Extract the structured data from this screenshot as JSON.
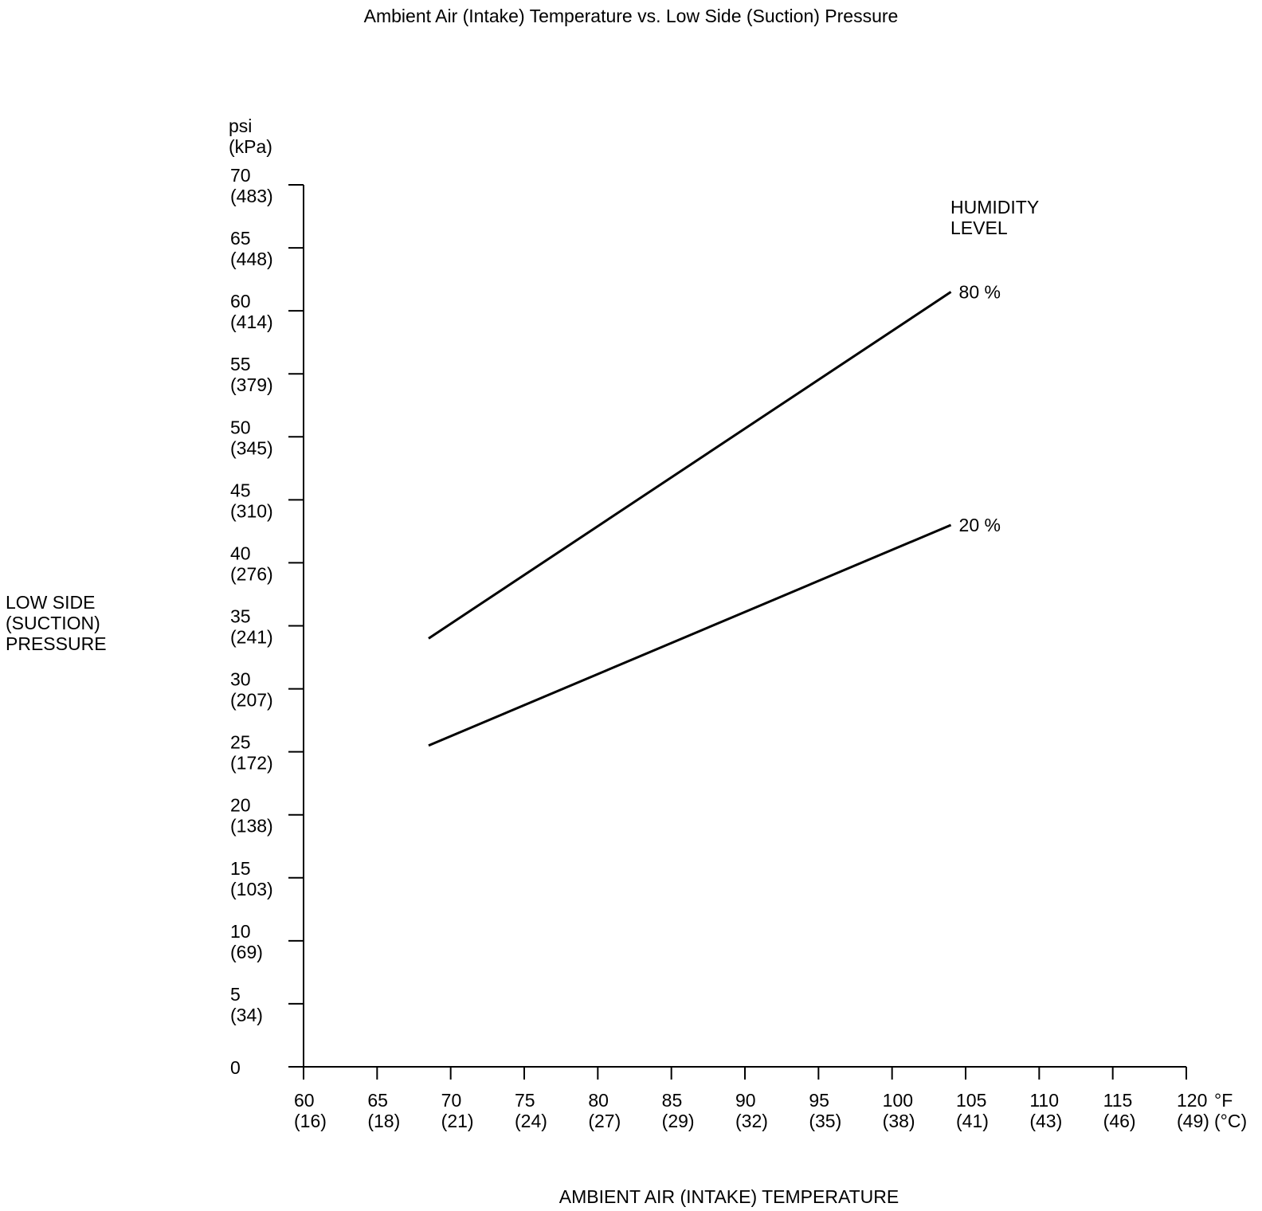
{
  "chart_data": {
    "type": "line",
    "title": "Ambient Air (Intake) Temperature vs. Low Side (Suction) Pressure",
    "xlabel": "AMBIENT AIR (INTAKE) TEMPERATURE",
    "ylabel_lines": [
      "LOW SIDE",
      "(SUCTION)",
      "PRESSURE"
    ],
    "y_unit_lines": [
      "psi",
      "(kPa)"
    ],
    "x_unit_lines": [
      "°F",
      "(°C)"
    ],
    "legend_title_lines": [
      "HUMIDITY",
      "LEVEL"
    ],
    "xlim": [
      60,
      120
    ],
    "ylim": [
      0,
      70
    ],
    "x_ticks": [
      {
        "value": 60,
        "label": "60",
        "sub": "(16)"
      },
      {
        "value": 65,
        "label": "65",
        "sub": "(18)"
      },
      {
        "value": 70,
        "label": "70",
        "sub": "(21)"
      },
      {
        "value": 75,
        "label": "75",
        "sub": "(24)"
      },
      {
        "value": 80,
        "label": "80",
        "sub": "(27)"
      },
      {
        "value": 85,
        "label": "85",
        "sub": "(29)"
      },
      {
        "value": 90,
        "label": "90",
        "sub": "(32)"
      },
      {
        "value": 95,
        "label": "95",
        "sub": "(35)"
      },
      {
        "value": 100,
        "label": "100",
        "sub": "(38)"
      },
      {
        "value": 105,
        "label": "105",
        "sub": "(41)"
      },
      {
        "value": 110,
        "label": "110",
        "sub": "(43)"
      },
      {
        "value": 115,
        "label": "115",
        "sub": "(46)"
      },
      {
        "value": 120,
        "label": "120",
        "sub": "(49)"
      }
    ],
    "y_ticks": [
      {
        "value": 0,
        "label": "0",
        "sub": ""
      },
      {
        "value": 5,
        "label": "5",
        "sub": "(34)"
      },
      {
        "value": 10,
        "label": "10",
        "sub": "(69)"
      },
      {
        "value": 15,
        "label": "15",
        "sub": "(103)"
      },
      {
        "value": 20,
        "label": "20",
        "sub": "(138)"
      },
      {
        "value": 25,
        "label": "25",
        "sub": "(172)"
      },
      {
        "value": 30,
        "label": "30",
        "sub": "(207)"
      },
      {
        "value": 35,
        "label": "35",
        "sub": "(241)"
      },
      {
        "value": 40,
        "label": "40",
        "sub": "(276)"
      },
      {
        "value": 45,
        "label": "45",
        "sub": "(310)"
      },
      {
        "value": 50,
        "label": "50",
        "sub": "(345)"
      },
      {
        "value": 55,
        "label": "55",
        "sub": "(379)"
      },
      {
        "value": 60,
        "label": "60",
        "sub": "(414)"
      },
      {
        "value": 65,
        "label": "65",
        "sub": "(448)"
      },
      {
        "value": 70,
        "label": "70",
        "sub": "(483)"
      }
    ],
    "series": [
      {
        "name": "80 %",
        "x": [
          68.5,
          104
        ],
        "y": [
          34,
          61.5
        ]
      },
      {
        "name": "20 %",
        "x": [
          68.5,
          104
        ],
        "y": [
          25.5,
          43
        ]
      }
    ],
    "grid": false,
    "line_color": "#000000"
  }
}
